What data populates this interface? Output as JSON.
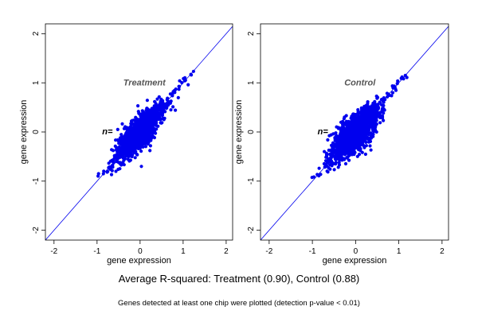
{
  "chart_data": [
    {
      "type": "scatter",
      "panel_label": "Treatment",
      "annotation": "n=",
      "xlabel": "gene expression",
      "ylabel": "gene expression",
      "xlim": [
        -2.2,
        2.15
      ],
      "ylim": [
        -2.2,
        2.2
      ],
      "xticks": [
        -2,
        -1,
        0,
        1,
        2
      ],
      "yticks": [
        -2,
        -1,
        0,
        1,
        2
      ],
      "reference_line": "y = x",
      "grid": false,
      "color": "#0000ee",
      "cloud": {
        "center": [
          -0.02,
          -0.02
        ],
        "major_direction_deg": 45,
        "x_range": [
          -0.95,
          1.22
        ],
        "y_range": [
          -0.98,
          1.22
        ],
        "spread_along": 0.36,
        "spread_across": 0.13
      }
    },
    {
      "type": "scatter",
      "panel_label": "Control",
      "annotation": "n=",
      "xlabel": "gene expression",
      "ylabel": "gene expression",
      "xlim": [
        -2.2,
        2.15
      ],
      "ylim": [
        -2.2,
        2.2
      ],
      "xticks": [
        -2,
        -1,
        0,
        1,
        2
      ],
      "yticks": [
        -2,
        -1,
        0,
        1,
        2
      ],
      "reference_line": "y = x",
      "grid": false,
      "color": "#0000ee",
      "cloud": {
        "center": [
          -0.02,
          -0.03
        ],
        "major_direction_deg": 45,
        "x_range": [
          -0.95,
          1.15
        ],
        "y_range": [
          -0.98,
          1.2
        ],
        "spread_along": 0.36,
        "spread_across": 0.15
      }
    }
  ],
  "subtitle": "Average R-squared: Treatment (0.90), Control (0.88)",
  "footnote": "Genes detected at least one chip were plotted (detection p-value < 0.01)"
}
